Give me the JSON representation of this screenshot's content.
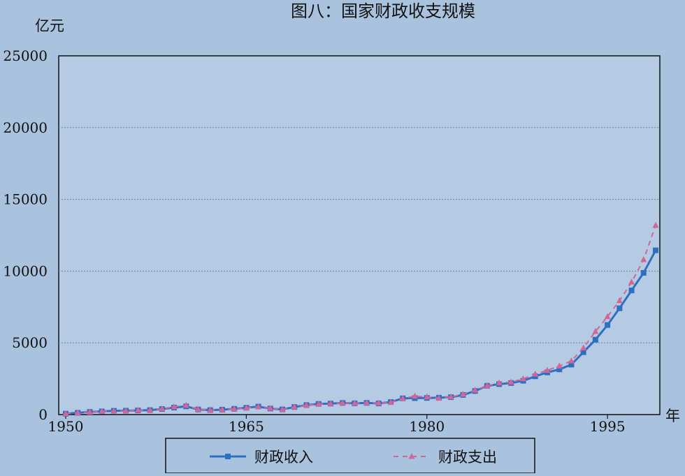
{
  "chart_data": {
    "type": "line",
    "title": "图八：国家财政收支规模",
    "ylabel": "亿元",
    "xlabel": "年",
    "xlim": [
      1950,
      1999
    ],
    "ylim": [
      0,
      25000
    ],
    "y_ticks": [
      0,
      5000,
      10000,
      15000,
      20000,
      25000
    ],
    "x_ticks": [
      1950,
      1965,
      1980,
      1995
    ],
    "grid": true,
    "legend_position": "bottom",
    "x": [
      1950,
      1951,
      1952,
      1953,
      1954,
      1955,
      1956,
      1957,
      1958,
      1959,
      1960,
      1961,
      1962,
      1963,
      1964,
      1965,
      1966,
      1967,
      1968,
      1969,
      1970,
      1971,
      1972,
      1973,
      1974,
      1975,
      1976,
      1977,
      1978,
      1979,
      1980,
      1981,
      1982,
      1983,
      1984,
      1985,
      1986,
      1987,
      1988,
      1989,
      1990,
      1991,
      1992,
      1993,
      1994,
      1995,
      1996,
      1997,
      1998,
      1999
    ],
    "series": [
      {
        "name": "财政收入",
        "color": "#2f6fc0",
        "style": "solid",
        "marker": "square",
        "values": [
          65,
          125,
          184,
          222,
          262,
          272,
          287,
          310,
          387,
          487,
          572,
          356,
          313,
          342,
          400,
          474,
          558,
          419,
          361,
          527,
          663,
          744,
          766,
          809,
          783,
          816,
          776,
          874,
          1132,
          1146,
          1160,
          1176,
          1212,
          1367,
          1643,
          2005,
          2122,
          2199,
          2357,
          2665,
          2937,
          3149,
          3483,
          4349,
          5218,
          6242,
          7408,
          8651,
          9876,
          11444
        ]
      },
      {
        "name": "财政支出",
        "color": "#d0669a",
        "style": "dashed",
        "marker": "triangle",
        "values": [
          68,
          122,
          173,
          220,
          245,
          262,
          298,
          296,
          400,
          544,
          644,
          367,
          305,
          340,
          394,
          460,
          538,
          440,
          358,
          526,
          649,
          732,
          766,
          809,
          791,
          821,
          806,
          844,
          1122,
          1282,
          1229,
          1138,
          1230,
          1410,
          1701,
          2004,
          2205,
          2262,
          2491,
          2824,
          3084,
          3387,
          3742,
          4643,
          5793,
          6824,
          7938,
          9234,
          10798,
          13188
        ]
      }
    ]
  }
}
